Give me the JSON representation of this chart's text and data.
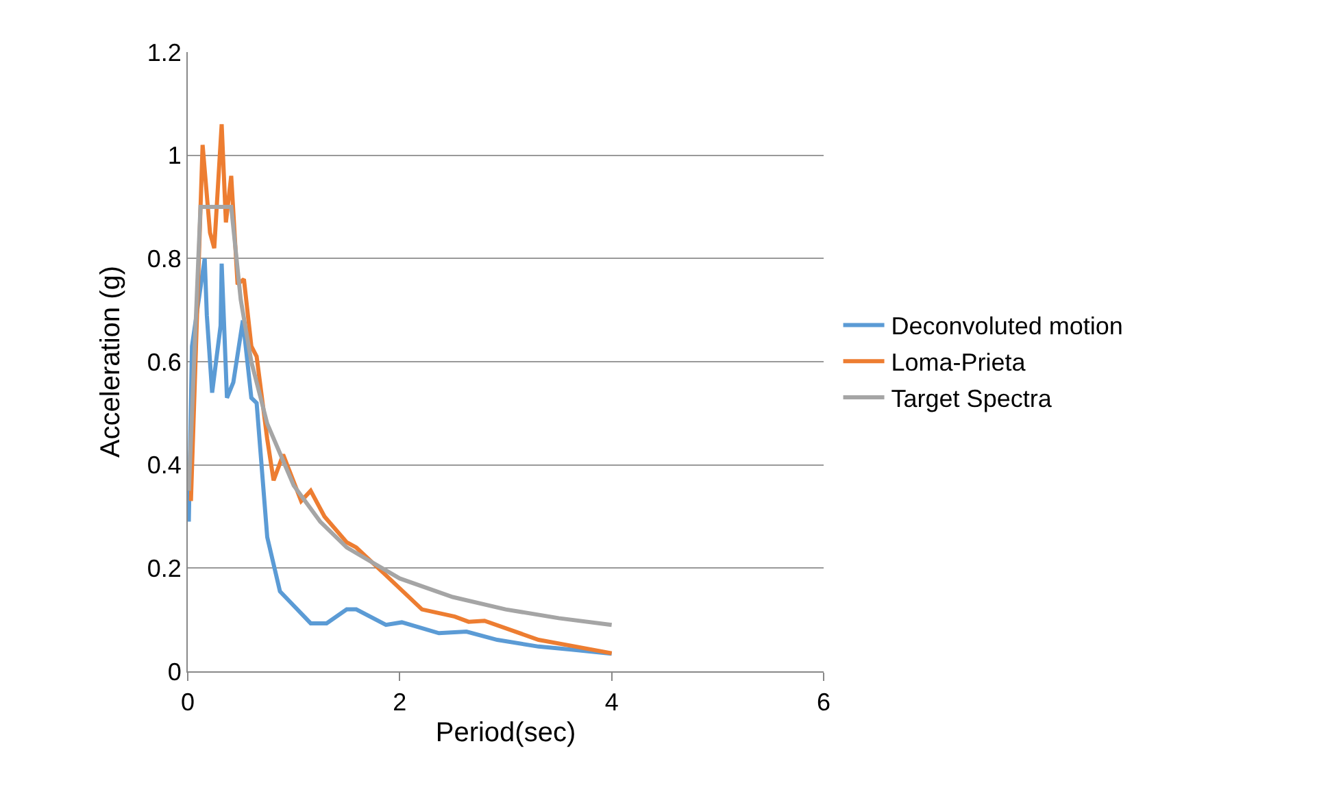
{
  "chart_data": {
    "type": "line",
    "xlabel": "Period(sec)",
    "ylabel": "Acceleration (g)",
    "xlim": [
      0,
      6
    ],
    "xticks": [
      0,
      2,
      4,
      6
    ],
    "ylim": [
      0,
      1.2
    ],
    "yticks": [
      0,
      0.2,
      0.4,
      0.6,
      0.8,
      1,
      1.2
    ],
    "grid": "y",
    "legend": "right",
    "marker": "none",
    "line_style": "solid",
    "series": [
      {
        "name": "Deconvoluted motion",
        "color": "#5b9bd5",
        "x": [
          0.01,
          0.04,
          0.16,
          0.18,
          0.23,
          0.31,
          0.32,
          0.37,
          0.43,
          0.52,
          0.6,
          0.65,
          0.75,
          0.87,
          0.94,
          1.16,
          1.31,
          1.5,
          1.59,
          1.87,
          2.02,
          2.37,
          2.63,
          2.92,
          3.31,
          3.62,
          4.0
        ],
        "values": [
          0.29,
          0.63,
          0.8,
          0.69,
          0.54,
          0.67,
          0.79,
          0.53,
          0.56,
          0.68,
          0.53,
          0.52,
          0.26,
          0.155,
          0.14,
          0.093,
          0.093,
          0.12,
          0.12,
          0.09,
          0.095,
          0.074,
          0.077,
          0.061,
          0.048,
          0.042,
          0.034
        ]
      },
      {
        "name": "Loma-Prieta",
        "color": "#ed7d31",
        "x": [
          0.03,
          0.14,
          0.21,
          0.25,
          0.32,
          0.36,
          0.41,
          0.47,
          0.53,
          0.6,
          0.65,
          0.75,
          0.81,
          0.9,
          1.07,
          1.16,
          1.29,
          1.5,
          1.59,
          1.85,
          2.21,
          2.52,
          2.65,
          2.8,
          3.31,
          3.66,
          4.0
        ],
        "values": [
          0.33,
          1.02,
          0.85,
          0.82,
          1.06,
          0.87,
          0.96,
          0.75,
          0.76,
          0.63,
          0.61,
          0.45,
          0.37,
          0.42,
          0.33,
          0.35,
          0.3,
          0.25,
          0.24,
          0.19,
          0.12,
          0.106,
          0.096,
          0.098,
          0.061,
          0.048,
          0.035
        ]
      },
      {
        "name": "Target Spectra",
        "color": "#a5a5a5",
        "x": [
          0.01,
          0.12,
          0.41,
          0.5,
          0.6,
          0.75,
          1.0,
          1.25,
          1.5,
          2.0,
          2.5,
          3.0,
          3.5,
          4.0
        ],
        "values": [
          0.35,
          0.9,
          0.9,
          0.72,
          0.6,
          0.48,
          0.36,
          0.29,
          0.24,
          0.18,
          0.144,
          0.12,
          0.103,
          0.09
        ]
      }
    ]
  }
}
